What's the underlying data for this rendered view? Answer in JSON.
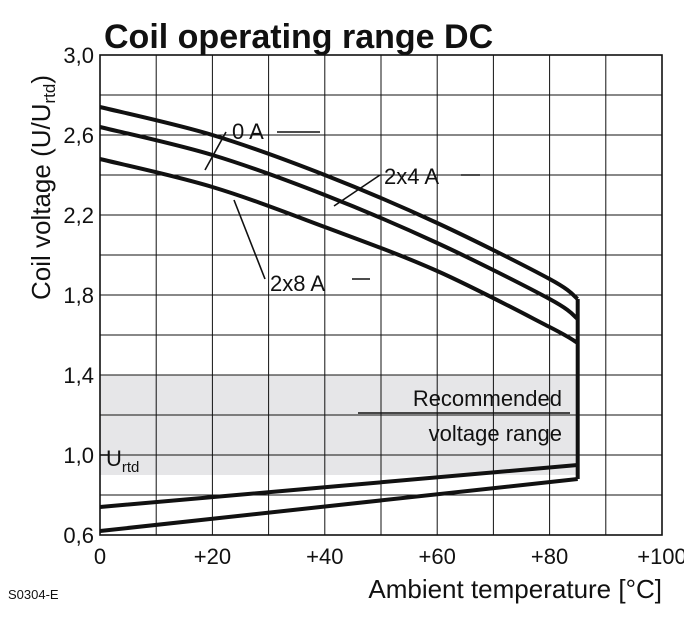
{
  "chart_data": {
    "type": "line",
    "title": "Coil operating range DC",
    "xlabel": "Ambient temperature [°C]",
    "ylabel_main": "Coil voltage (U/U",
    "ylabel_sub": "rtd",
    "ylabel_end": ")",
    "xlim": [
      0,
      100
    ],
    "ylim": [
      0.6,
      3.0
    ],
    "x_ticks": [
      {
        "value": 0,
        "label": "0"
      },
      {
        "value": 20,
        "label": "+20"
      },
      {
        "value": 40,
        "label": "+40"
      },
      {
        "value": 60,
        "label": "+60"
      },
      {
        "value": 80,
        "label": "+80"
      },
      {
        "value": 100,
        "label": "+100"
      }
    ],
    "y_ticks": [
      {
        "value": 0.6,
        "label": "0,6"
      },
      {
        "value": 1.0,
        "label": "1,0"
      },
      {
        "value": 1.4,
        "label": "1,4"
      },
      {
        "value": 1.8,
        "label": "1,8"
      },
      {
        "value": 2.2,
        "label": "2,2"
      },
      {
        "value": 2.6,
        "label": "2,6"
      },
      {
        "value": 3.0,
        "label": "3,0"
      }
    ],
    "grid": true,
    "series": [
      {
        "name": "0 A",
        "x": [
          0,
          20,
          40,
          60,
          80,
          85
        ],
        "y": [
          2.74,
          2.6,
          2.4,
          2.16,
          1.88,
          1.78
        ]
      },
      {
        "name": "2x4 A",
        "x": [
          0,
          20,
          40,
          60,
          80,
          85
        ],
        "y": [
          2.64,
          2.5,
          2.3,
          2.06,
          1.78,
          1.68
        ]
      },
      {
        "name": "2x8 A",
        "x": [
          0,
          20,
          40,
          60,
          80,
          85
        ],
        "y": [
          2.48,
          2.34,
          2.14,
          1.92,
          1.64,
          1.56
        ]
      },
      {
        "name": "",
        "x": [
          0,
          85
        ],
        "y": [
          0.74,
          0.95
        ]
      },
      {
        "name": "",
        "x": [
          0,
          85
        ],
        "y": [
          0.62,
          0.88
        ]
      }
    ],
    "boundary": {
      "x": 85,
      "y_from": 0.88,
      "y_to": 1.78
    },
    "shaded_region": {
      "x": [
        0,
        85
      ],
      "y": [
        0.9,
        1.4
      ]
    },
    "annotations": {
      "recommended_line1": "Recommended",
      "recommended_line2": "voltage range",
      "urtd_main": "U",
      "urtd_sub": "rtd",
      "drawing_code": "S0304-E"
    },
    "colors": {
      "line": "#111111",
      "shade": "#e6e6e8",
      "grid": "#111111"
    }
  }
}
